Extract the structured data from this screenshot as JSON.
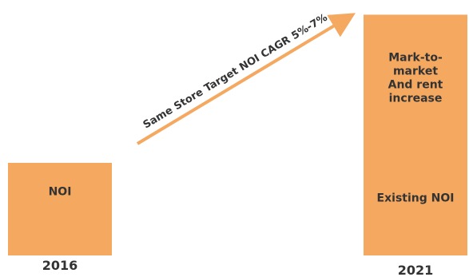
{
  "chart_data": {
    "type": "bar",
    "title": "",
    "xlabel": "",
    "ylabel": "",
    "categories": [
      "2016",
      "2021"
    ],
    "bars": [
      {
        "category": "2016",
        "segments": [
          {
            "label": "NOI",
            "relative_value": 1.0
          }
        ]
      },
      {
        "category": "2021",
        "segments": [
          {
            "label": "Existing NOI",
            "relative_value": 1.0
          },
          {
            "label": "Mark-to-\nmarket\nAnd rent\nincrease",
            "relative_value": 1.6
          }
        ]
      }
    ],
    "annotation": {
      "text": "Same Store Target NOI CAGR 5%-7%",
      "type": "arrow",
      "from": "2016",
      "to": "2021"
    },
    "bar_color": "#F5A860",
    "arrow_color": "#F5A860",
    "text_color": "#333333"
  }
}
